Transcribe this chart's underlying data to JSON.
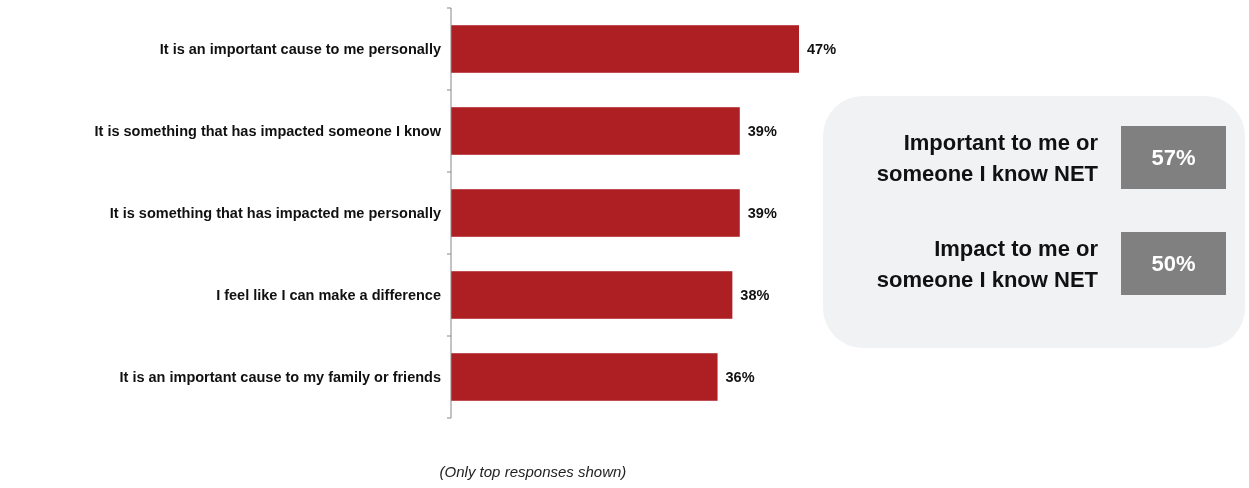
{
  "chart_data": {
    "type": "bar",
    "orientation": "horizontal",
    "categories": [
      "It is an important cause to me personally",
      "It is something that has impacted someone I know",
      "It is something that has impacted me personally",
      "I feel like I can make a difference",
      "It is an important cause to my family or friends"
    ],
    "values": [
      47,
      39,
      39,
      38,
      36
    ],
    "color": "#ae1f24",
    "value_labels": [
      "47%",
      "39%",
      "39%",
      "38%",
      "36%"
    ],
    "annotations": [
      "Important to me or someone I know NET",
      "57%",
      "Impact to me or someone I know NET",
      "50%",
      "(Only top responses shown)"
    ]
  }
}
